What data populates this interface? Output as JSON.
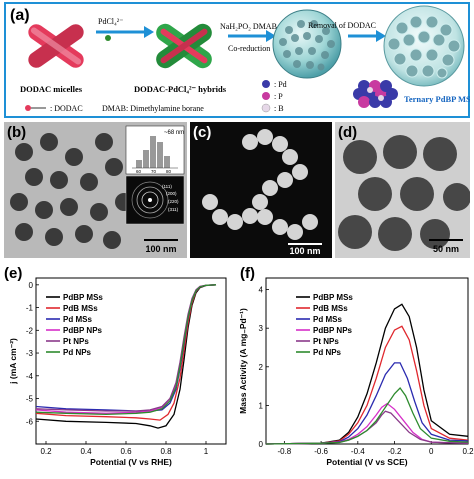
{
  "panel_a": {
    "label": "(a)",
    "step1": "PdCl₄²⁻",
    "step2_top": "NaH₂PO₂  DMAB",
    "step2_bottom": "Co-reduction",
    "step3": "Removal of DODAC",
    "micelles": "DODAC micelles",
    "hybrids": "DODAC-PdCl₄²⁻ hybrids",
    "legend_dodac": ": DODAC",
    "legend_dmab": "DMAB: Dimethylamine borane",
    "legend_pd": ": Pd",
    "legend_p": ": P",
    "legend_b": ": B",
    "product": "Ternary PdBP MSs",
    "colors": {
      "frame": "#1e90d6",
      "pd": "#3a3aa8",
      "p": "#c83aa0",
      "b": "#e6d8e8",
      "product": "#1565c0"
    }
  },
  "panel_b": {
    "label": "(b)",
    "scale": "100 nm",
    "inset_size": "~68 nm",
    "inset_ticks": [
      "60",
      "70",
      "80"
    ],
    "saed_labels": [
      "(111)",
      "(200)",
      "(220)",
      "(311)"
    ]
  },
  "panel_c": {
    "label": "(c)",
    "scale": "100 nm"
  },
  "panel_d": {
    "label": "(d)",
    "scale": "50 nm"
  },
  "chart_data": [
    {
      "type": "line",
      "panel": "(e)",
      "xlabel": "Potential (V vs RHE)",
      "ylabel": "j (mA cm⁻²)",
      "xlim": [
        0.15,
        1.1
      ],
      "ylim": [
        -7,
        0.3
      ],
      "xticks": [
        0.2,
        0.4,
        0.6,
        0.8,
        1.0
      ],
      "yticks": [
        0,
        -1,
        -2,
        -3,
        -4,
        -5,
        -6
      ],
      "legend_position": "top-left",
      "series": [
        {
          "name": "PdBP MSs",
          "color": "#000000",
          "x": [
            0.15,
            0.3,
            0.5,
            0.65,
            0.72,
            0.76,
            0.8,
            0.84,
            0.87,
            0.89,
            0.91,
            0.93,
            0.95,
            0.97,
            1.0,
            1.05
          ],
          "y": [
            -5.9,
            -6.0,
            -6.05,
            -6.1,
            -6.2,
            -6.3,
            -6.2,
            -5.7,
            -4.6,
            -3.3,
            -1.9,
            -0.9,
            -0.35,
            -0.12,
            -0.03,
            0.0
          ]
        },
        {
          "name": "PdB MSs",
          "color": "#e0282e",
          "x": [
            0.15,
            0.3,
            0.5,
            0.65,
            0.72,
            0.77,
            0.81,
            0.84,
            0.87,
            0.89,
            0.91,
            0.93,
            0.95,
            0.97,
            1.0,
            1.05
          ],
          "y": [
            -5.65,
            -5.75,
            -5.8,
            -5.85,
            -5.9,
            -5.95,
            -5.7,
            -5.2,
            -4.1,
            -2.9,
            -1.7,
            -0.8,
            -0.3,
            -0.1,
            -0.02,
            0.0
          ]
        },
        {
          "name": "Pd MSs",
          "color": "#2b2bb0",
          "x": [
            0.15,
            0.3,
            0.5,
            0.65,
            0.72,
            0.78,
            0.82,
            0.85,
            0.87,
            0.89,
            0.91,
            0.93,
            0.95,
            0.97,
            1.0,
            1.05
          ],
          "y": [
            -5.35,
            -5.45,
            -5.5,
            -5.55,
            -5.55,
            -5.5,
            -5.2,
            -4.6,
            -3.7,
            -2.6,
            -1.5,
            -0.7,
            -0.27,
            -0.09,
            -0.02,
            0.0
          ]
        },
        {
          "name": "PdBP NPs",
          "color": "#d62fc8",
          "x": [
            0.15,
            0.3,
            0.5,
            0.65,
            0.72,
            0.78,
            0.82,
            0.85,
            0.87,
            0.89,
            0.91,
            0.93,
            0.95,
            0.97,
            1.0,
            1.05
          ],
          "y": [
            -5.5,
            -5.6,
            -5.65,
            -5.6,
            -5.55,
            -5.4,
            -5.0,
            -4.4,
            -3.5,
            -2.4,
            -1.4,
            -0.65,
            -0.25,
            -0.08,
            -0.02,
            0.0
          ]
        },
        {
          "name": "Pt NPs",
          "color": "#8a3a8a",
          "x": [
            0.15,
            0.3,
            0.5,
            0.65,
            0.72,
            0.78,
            0.82,
            0.85,
            0.87,
            0.89,
            0.91,
            0.93,
            0.95,
            0.97,
            1.0,
            1.05
          ],
          "y": [
            -5.45,
            -5.5,
            -5.55,
            -5.55,
            -5.5,
            -5.35,
            -5.0,
            -4.3,
            -3.4,
            -2.3,
            -1.3,
            -0.6,
            -0.22,
            -0.07,
            -0.02,
            0.0
          ]
        },
        {
          "name": "Pd NPs",
          "color": "#2e8b2e",
          "x": [
            0.15,
            0.3,
            0.5,
            0.65,
            0.72,
            0.78,
            0.82,
            0.85,
            0.87,
            0.89,
            0.91,
            0.93,
            0.95,
            0.97,
            1.0,
            1.05
          ],
          "y": [
            -5.6,
            -5.65,
            -5.7,
            -5.65,
            -5.6,
            -5.45,
            -5.1,
            -4.5,
            -3.6,
            -2.5,
            -1.45,
            -0.7,
            -0.26,
            -0.09,
            -0.02,
            0.0
          ]
        }
      ]
    },
    {
      "type": "line",
      "panel": "(f)",
      "xlabel": "Potential (V vs SCE)",
      "ylabel": "Mass Activity (A mg₋Pd⁻¹)",
      "xlim": [
        -0.9,
        0.2
      ],
      "ylim": [
        0,
        4.3
      ],
      "xticks": [
        -0.8,
        -0.6,
        -0.4,
        -0.2,
        0.0,
        0.2
      ],
      "yticks": [
        0,
        1,
        2,
        3,
        4
      ],
      "legend_position": "top-left",
      "series": [
        {
          "name": "PdBP MSs",
          "color": "#000000",
          "x": [
            -0.9,
            -0.6,
            -0.5,
            -0.45,
            -0.4,
            -0.35,
            -0.3,
            -0.25,
            -0.2,
            -0.16,
            -0.12,
            -0.08,
            -0.04,
            0.0,
            0.1,
            0.2
          ],
          "y": [
            0.0,
            0.02,
            0.1,
            0.3,
            0.7,
            1.3,
            2.1,
            3.0,
            3.5,
            3.62,
            3.3,
            2.5,
            1.4,
            0.6,
            0.25,
            0.2
          ]
        },
        {
          "name": "PdB MSs",
          "color": "#e0282e",
          "x": [
            -0.9,
            -0.6,
            -0.5,
            -0.45,
            -0.4,
            -0.35,
            -0.3,
            -0.25,
            -0.2,
            -0.16,
            -0.12,
            -0.08,
            -0.04,
            0.0,
            0.1,
            0.2
          ],
          "y": [
            0.0,
            0.02,
            0.08,
            0.25,
            0.55,
            1.0,
            1.7,
            2.5,
            2.95,
            3.05,
            2.7,
            1.9,
            1.0,
            0.4,
            0.15,
            0.1
          ]
        },
        {
          "name": "Pd MSs",
          "color": "#2b2bb0",
          "x": [
            -0.9,
            -0.6,
            -0.5,
            -0.45,
            -0.4,
            -0.35,
            -0.3,
            -0.25,
            -0.2,
            -0.17,
            -0.13,
            -0.09,
            -0.05,
            0.0,
            0.1,
            0.2
          ],
          "y": [
            0.0,
            0.02,
            0.06,
            0.18,
            0.4,
            0.75,
            1.25,
            1.8,
            2.1,
            2.1,
            1.7,
            1.1,
            0.55,
            0.25,
            0.1,
            0.08
          ]
        },
        {
          "name": "PdBP NPs",
          "color": "#d62fc8",
          "x": [
            -0.9,
            -0.6,
            -0.5,
            -0.45,
            -0.4,
            -0.35,
            -0.3,
            -0.27,
            -0.24,
            -0.2,
            -0.15,
            -0.1,
            -0.05,
            0.0,
            0.1,
            0.2
          ],
          "y": [
            0.0,
            0.02,
            0.05,
            0.12,
            0.25,
            0.45,
            0.75,
            0.95,
            1.05,
            0.9,
            0.6,
            0.3,
            0.12,
            0.05,
            0.03,
            0.02
          ]
        },
        {
          "name": "Pt NPs",
          "color": "#8a3a8a",
          "x": [
            -0.9,
            -0.6,
            -0.5,
            -0.45,
            -0.4,
            -0.35,
            -0.3,
            -0.27,
            -0.25,
            -0.22,
            -0.18,
            -0.12,
            -0.06,
            0.0,
            0.1,
            0.2
          ],
          "y": [
            0.0,
            0.02,
            0.05,
            0.1,
            0.2,
            0.35,
            0.55,
            0.75,
            0.85,
            0.8,
            0.6,
            0.3,
            0.12,
            0.05,
            0.03,
            0.02
          ]
        },
        {
          "name": "Pd NPs",
          "color": "#2e8b2e",
          "x": [
            -0.9,
            -0.6,
            -0.5,
            -0.45,
            -0.4,
            -0.35,
            -0.3,
            -0.25,
            -0.2,
            -0.17,
            -0.14,
            -0.1,
            -0.06,
            0.0,
            0.1,
            0.2
          ],
          "y": [
            0.0,
            0.02,
            0.04,
            0.1,
            0.2,
            0.35,
            0.6,
            0.95,
            1.3,
            1.45,
            1.25,
            0.8,
            0.4,
            0.15,
            0.07,
            0.05
          ]
        }
      ]
    }
  ]
}
